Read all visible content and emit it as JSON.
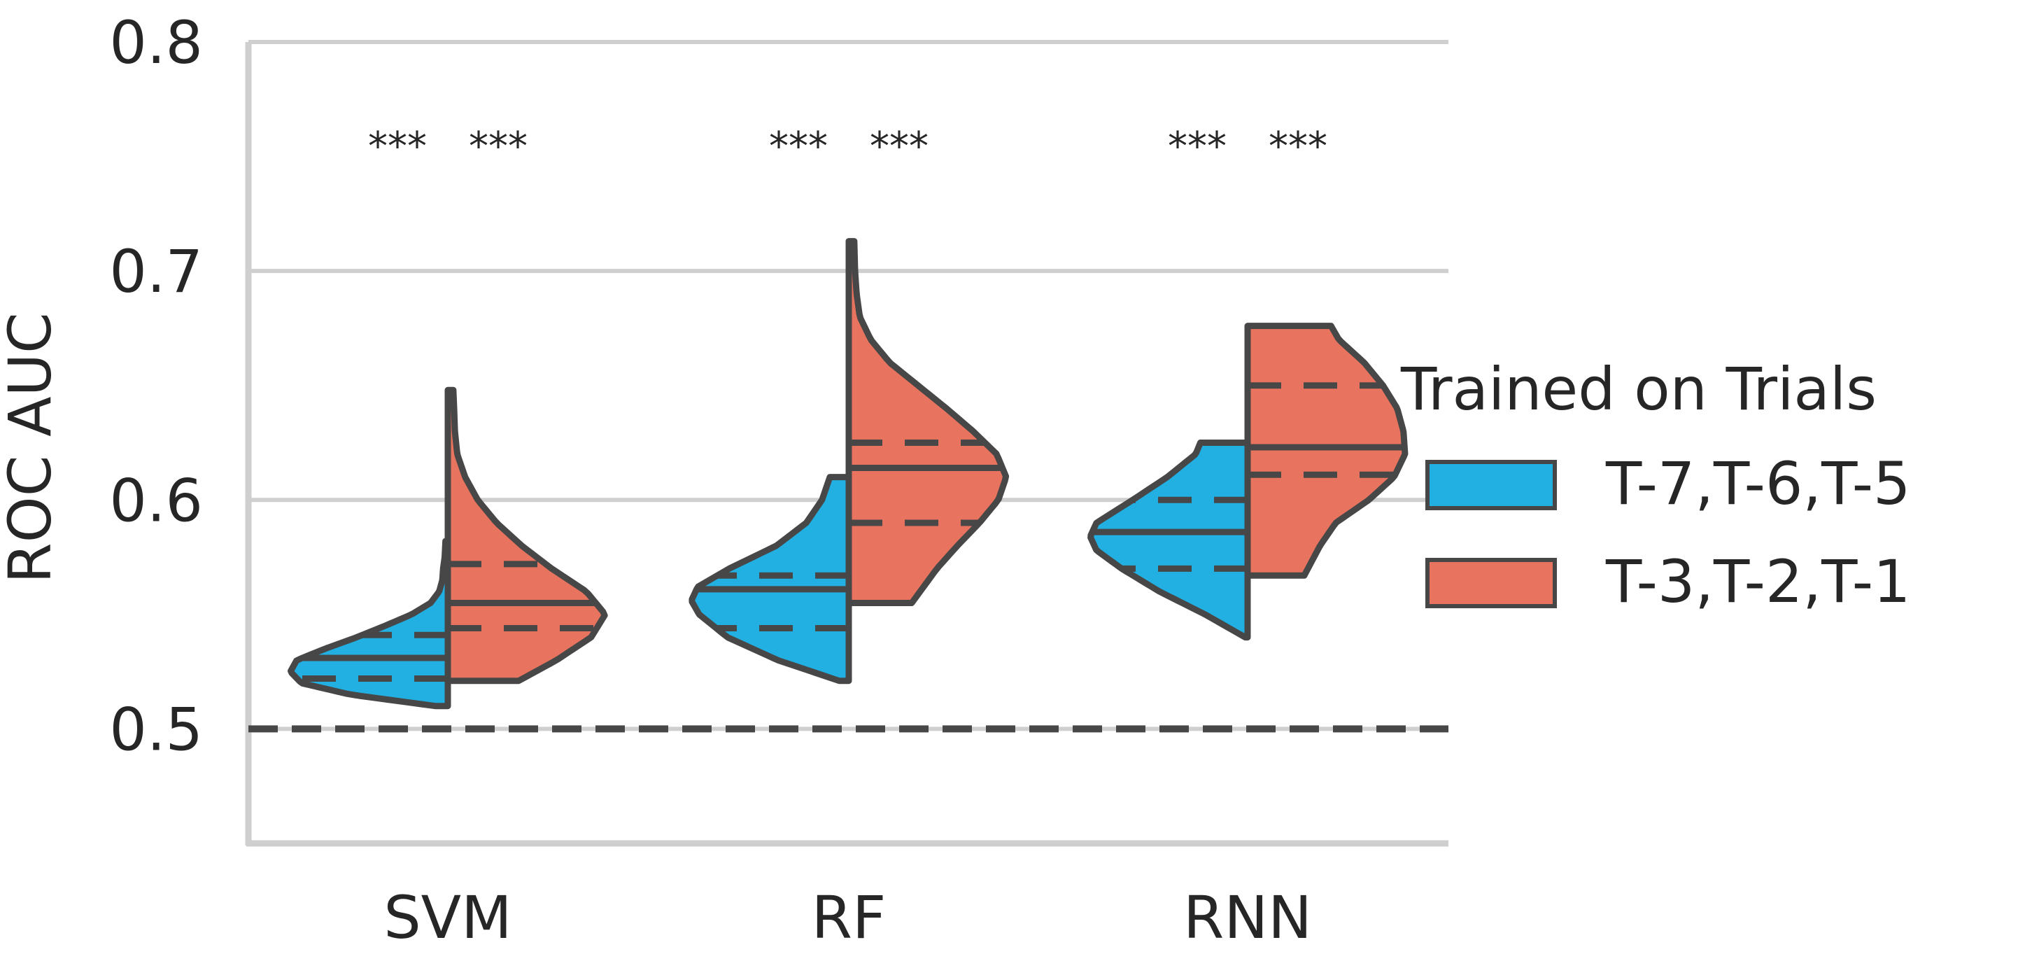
{
  "chart_data": {
    "type": "violin",
    "title": "",
    "xlabel": "",
    "ylabel": "ROC AUC",
    "ylim": [
      0.45,
      0.8
    ],
    "yticks": [
      0.5,
      0.6,
      0.7,
      0.8
    ],
    "ytick_labels": [
      "0.5",
      "0.6",
      "0.7",
      "0.8"
    ],
    "grid": "horizontal",
    "split": true,
    "inner": "quartile",
    "categories": [
      "SVM",
      "RF",
      "RNN"
    ],
    "chance_line": 0.5,
    "legend": {
      "title": "Trained on Trials",
      "placement": "right"
    },
    "series": [
      {
        "name": "T-7,T-6,T-5",
        "color": "#22b0e3",
        "violins": [
          {
            "category": "SVM",
            "min": 0.51,
            "q1": 0.522,
            "median": 0.531,
            "q3": 0.541,
            "max": 0.582,
            "profile": [
              [
                0.51,
                0.08
              ],
              [
                0.515,
                0.62
              ],
              [
                0.52,
                0.93
              ],
              [
                0.525,
                1.0
              ],
              [
                0.53,
                0.96
              ],
              [
                0.535,
                0.78
              ],
              [
                0.54,
                0.58
              ],
              [
                0.545,
                0.4
              ],
              [
                0.55,
                0.23
              ],
              [
                0.555,
                0.11
              ],
              [
                0.56,
                0.055
              ],
              [
                0.565,
                0.035
              ],
              [
                0.57,
                0.03
              ],
              [
                0.575,
                0.02
              ],
              [
                0.582,
                0.015
              ]
            ]
          },
          {
            "category": "RF",
            "min": 0.521,
            "q1": 0.544,
            "median": 0.561,
            "q3": 0.567,
            "max": 0.61,
            "profile": [
              [
                0.521,
                0.06
              ],
              [
                0.53,
                0.45
              ],
              [
                0.54,
                0.77
              ],
              [
                0.55,
                0.95
              ],
              [
                0.556,
                1.0
              ],
              [
                0.562,
                0.96
              ],
              [
                0.57,
                0.76
              ],
              [
                0.58,
                0.46
              ],
              [
                0.59,
                0.27
              ],
              [
                0.6,
                0.17
              ],
              [
                0.61,
                0.12
              ]
            ]
          },
          {
            "category": "RNN",
            "min": 0.54,
            "q1": 0.57,
            "median": 0.586,
            "q3": 0.6,
            "max": 0.625,
            "profile": [
              [
                0.54,
                0.015
              ],
              [
                0.55,
                0.27
              ],
              [
                0.56,
                0.56
              ],
              [
                0.57,
                0.8
              ],
              [
                0.578,
                0.96
              ],
              [
                0.584,
                1.0
              ],
              [
                0.59,
                0.96
              ],
              [
                0.6,
                0.73
              ],
              [
                0.61,
                0.51
              ],
              [
                0.62,
                0.33
              ],
              [
                0.625,
                0.3
              ]
            ]
          }
        ]
      },
      {
        "name": "T-3,T-2,T-1",
        "color": "#e8735e",
        "violins": [
          {
            "category": "SVM",
            "min": 0.521,
            "q1": 0.544,
            "median": 0.555,
            "q3": 0.572,
            "max": 0.648,
            "profile": [
              [
                0.521,
                0.45
              ],
              [
                0.53,
                0.69
              ],
              [
                0.54,
                0.91
              ],
              [
                0.55,
                1.0
              ],
              [
                0.56,
                0.88
              ],
              [
                0.57,
                0.66
              ],
              [
                0.58,
                0.47
              ],
              [
                0.59,
                0.31
              ],
              [
                0.6,
                0.19
              ],
              [
                0.61,
                0.11
              ],
              [
                0.62,
                0.06
              ],
              [
                0.63,
                0.045
              ],
              [
                0.64,
                0.04
              ],
              [
                0.648,
                0.035
              ]
            ]
          },
          {
            "category": "RF",
            "min": 0.555,
            "q1": 0.59,
            "median": 0.614,
            "q3": 0.625,
            "max": 0.713,
            "profile": [
              [
                0.555,
                0.4
              ],
              [
                0.57,
                0.56
              ],
              [
                0.58,
                0.69
              ],
              [
                0.59,
                0.83
              ],
              [
                0.6,
                0.95
              ],
              [
                0.61,
                1.0
              ],
              [
                0.62,
                0.94
              ],
              [
                0.63,
                0.79
              ],
              [
                0.64,
                0.62
              ],
              [
                0.65,
                0.44
              ],
              [
                0.66,
                0.26
              ],
              [
                0.67,
                0.14
              ],
              [
                0.68,
                0.07
              ],
              [
                0.69,
                0.05
              ],
              [
                0.7,
                0.04
              ],
              [
                0.713,
                0.035
              ]
            ]
          },
          {
            "category": "RNN",
            "min": 0.567,
            "q1": 0.611,
            "median": 0.623,
            "q3": 0.65,
            "max": 0.676,
            "profile": [
              [
                0.567,
                0.36
              ],
              [
                0.58,
                0.46
              ],
              [
                0.59,
                0.56
              ],
              [
                0.6,
                0.77
              ],
              [
                0.61,
                0.93
              ],
              [
                0.62,
                1.0
              ],
              [
                0.63,
                0.99
              ],
              [
                0.64,
                0.95
              ],
              [
                0.65,
                0.86
              ],
              [
                0.66,
                0.74
              ],
              [
                0.67,
                0.58
              ],
              [
                0.676,
                0.53
              ]
            ]
          }
        ]
      }
    ],
    "annotations": [
      {
        "category": "SVM",
        "series": "T-7,T-6,T-5",
        "text": "***"
      },
      {
        "category": "SVM",
        "series": "T-3,T-2,T-1",
        "text": "***"
      },
      {
        "category": "RF",
        "series": "T-7,T-6,T-5",
        "text": "***"
      },
      {
        "category": "RF",
        "series": "T-3,T-2,T-1",
        "text": "***"
      },
      {
        "category": "RNN",
        "series": "T-7,T-6,T-5",
        "text": "***"
      },
      {
        "category": "RNN",
        "series": "T-3,T-2,T-1",
        "text": "***"
      }
    ]
  }
}
